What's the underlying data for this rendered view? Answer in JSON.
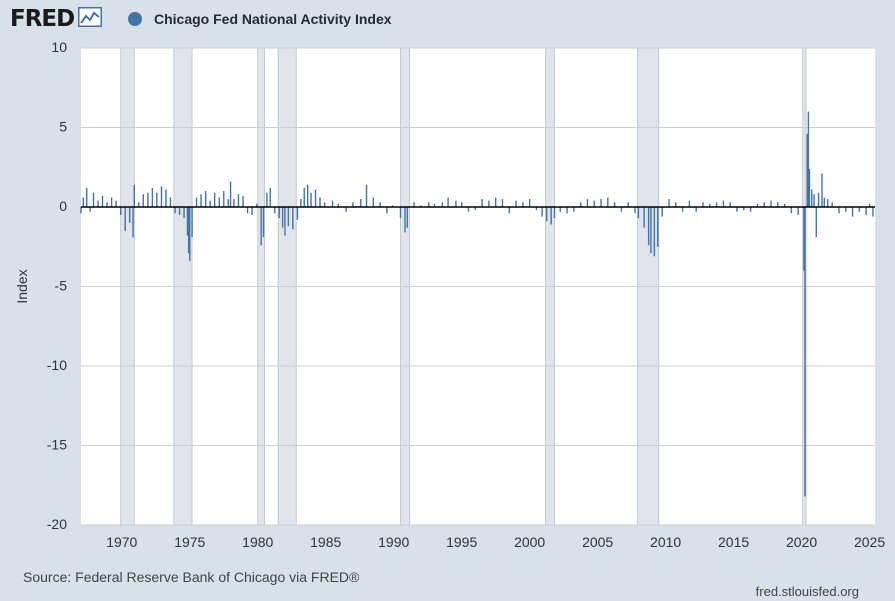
{
  "header": {
    "brand": "FRED",
    "brand_icon": "line-graph-icon",
    "legend_label": "Chicago Fed National Activity Index"
  },
  "footer": {
    "source": "Source: Federal Reserve Bank of Chicago via FRED®",
    "site": "fred.stlouisfed.org"
  },
  "colors": {
    "background": "#d8e0e9",
    "plot_background": "#ffffff",
    "series": "#4572a7",
    "recession": "#e1e5eb",
    "gridline": "#c9cfd6",
    "zero_line": "#000000"
  },
  "chart_data": {
    "type": "bar",
    "title": "Chicago Fed National Activity Index",
    "ylabel": "Index",
    "xlabel": "",
    "xlim": [
      1967.0,
      2025.4
    ],
    "ylim": [
      -20,
      10
    ],
    "yticks": [
      10,
      5,
      0,
      -5,
      -10,
      -15,
      -20
    ],
    "xticks": [
      1970,
      1975,
      1980,
      1985,
      1990,
      1995,
      2000,
      2005,
      2010,
      2015,
      2020,
      2025
    ],
    "grid": true,
    "frequency": "monthly",
    "recessions": [
      [
        1969.92,
        1970.92
      ],
      [
        1973.83,
        1975.17
      ],
      [
        1980.0,
        1980.5
      ],
      [
        1981.5,
        1982.83
      ],
      [
        1990.5,
        1991.17
      ],
      [
        2001.17,
        2001.83
      ],
      [
        2007.92,
        2009.5
      ],
      [
        2020.08,
        2020.33
      ]
    ],
    "series": [
      {
        "name": "Chicago Fed National Activity Index",
        "values": [
          [
            1967.0,
            -0.4
          ],
          [
            1967.17,
            0.6
          ],
          [
            1967.42,
            1.2
          ],
          [
            1967.67,
            -0.3
          ],
          [
            1967.92,
            0.9
          ],
          [
            1968.25,
            0.4
          ],
          [
            1968.58,
            0.7
          ],
          [
            1968.92,
            0.3
          ],
          [
            1969.25,
            0.6
          ],
          [
            1969.58,
            0.4
          ],
          [
            1969.92,
            -0.5
          ],
          [
            1970.25,
            -1.5
          ],
          [
            1970.58,
            -1.0
          ],
          [
            1970.83,
            -1.9
          ],
          [
            1970.92,
            1.4
          ],
          [
            1971.25,
            0.3
          ],
          [
            1971.58,
            0.8
          ],
          [
            1971.92,
            0.9
          ],
          [
            1972.25,
            1.2
          ],
          [
            1972.58,
            0.9
          ],
          [
            1972.92,
            1.3
          ],
          [
            1973.25,
            1.1
          ],
          [
            1973.58,
            0.6
          ],
          [
            1973.92,
            -0.4
          ],
          [
            1974.25,
            -0.5
          ],
          [
            1974.58,
            -0.7
          ],
          [
            1974.83,
            -1.8
          ],
          [
            1974.92,
            -2.9
          ],
          [
            1975.0,
            -3.4
          ],
          [
            1975.17,
            -1.9
          ],
          [
            1975.5,
            0.6
          ],
          [
            1975.83,
            0.8
          ],
          [
            1976.17,
            1.0
          ],
          [
            1976.5,
            0.4
          ],
          [
            1976.83,
            0.9
          ],
          [
            1977.17,
            0.6
          ],
          [
            1977.5,
            1.0
          ],
          [
            1977.83,
            0.5
          ],
          [
            1978.0,
            1.6
          ],
          [
            1978.25,
            0.5
          ],
          [
            1978.58,
            0.8
          ],
          [
            1978.92,
            0.7
          ],
          [
            1979.25,
            -0.4
          ],
          [
            1979.58,
            -0.5
          ],
          [
            1979.92,
            0.2
          ],
          [
            1980.25,
            -2.4
          ],
          [
            1980.42,
            -1.9
          ],
          [
            1980.67,
            0.9
          ],
          [
            1980.92,
            1.2
          ],
          [
            1981.25,
            -0.4
          ],
          [
            1981.58,
            -0.7
          ],
          [
            1981.83,
            -1.3
          ],
          [
            1982.0,
            -1.8
          ],
          [
            1982.25,
            -1.2
          ],
          [
            1982.58,
            -1.4
          ],
          [
            1982.92,
            -0.8
          ],
          [
            1983.17,
            0.5
          ],
          [
            1983.42,
            1.2
          ],
          [
            1983.67,
            1.4
          ],
          [
            1983.92,
            0.9
          ],
          [
            1984.25,
            1.1
          ],
          [
            1984.58,
            0.6
          ],
          [
            1984.92,
            0.3
          ],
          [
            1985.5,
            0.4
          ],
          [
            1985.92,
            0.2
          ],
          [
            1986.5,
            -0.3
          ],
          [
            1987.0,
            0.3
          ],
          [
            1987.58,
            0.5
          ],
          [
            1988.0,
            1.4
          ],
          [
            1988.5,
            0.6
          ],
          [
            1989.0,
            0.3
          ],
          [
            1989.5,
            -0.4
          ],
          [
            1989.92,
            0.1
          ],
          [
            1990.5,
            -0.7
          ],
          [
            1990.83,
            -1.6
          ],
          [
            1991.0,
            -1.3
          ],
          [
            1991.5,
            0.3
          ],
          [
            1992.0,
            0.1
          ],
          [
            1992.58,
            0.3
          ],
          [
            1993.0,
            0.2
          ],
          [
            1993.58,
            0.3
          ],
          [
            1994.0,
            0.6
          ],
          [
            1994.58,
            0.4
          ],
          [
            1995.0,
            0.3
          ],
          [
            1995.5,
            -0.3
          ],
          [
            1996.0,
            -0.2
          ],
          [
            1996.5,
            0.5
          ],
          [
            1997.0,
            0.4
          ],
          [
            1997.5,
            0.6
          ],
          [
            1998.0,
            0.5
          ],
          [
            1998.5,
            -0.4
          ],
          [
            1999.0,
            0.4
          ],
          [
            1999.5,
            0.3
          ],
          [
            2000.0,
            0.5
          ],
          [
            2000.5,
            -0.2
          ],
          [
            2000.92,
            -0.6
          ],
          [
            2001.25,
            -0.9
          ],
          [
            2001.58,
            -1.1
          ],
          [
            2001.83,
            -0.7
          ],
          [
            2002.25,
            -0.3
          ],
          [
            2002.75,
            -0.4
          ],
          [
            2003.25,
            -0.3
          ],
          [
            2003.75,
            0.3
          ],
          [
            2004.25,
            0.5
          ],
          [
            2004.75,
            0.4
          ],
          [
            2005.25,
            0.5
          ],
          [
            2005.75,
            0.6
          ],
          [
            2006.25,
            0.3
          ],
          [
            2006.75,
            -0.3
          ],
          [
            2007.25,
            0.3
          ],
          [
            2007.75,
            -0.4
          ],
          [
            2008.0,
            -0.7
          ],
          [
            2008.42,
            -1.3
          ],
          [
            2008.75,
            -2.4
          ],
          [
            2008.92,
            -2.9
          ],
          [
            2009.17,
            -3.1
          ],
          [
            2009.42,
            -2.5
          ],
          [
            2009.75,
            -0.6
          ],
          [
            2010.25,
            0.5
          ],
          [
            2010.75,
            0.3
          ],
          [
            2011.25,
            -0.3
          ],
          [
            2011.75,
            0.4
          ],
          [
            2012.25,
            -0.3
          ],
          [
            2012.75,
            0.3
          ],
          [
            2013.25,
            0.2
          ],
          [
            2013.75,
            0.3
          ],
          [
            2014.25,
            0.4
          ],
          [
            2014.75,
            0.3
          ],
          [
            2015.25,
            -0.3
          ],
          [
            2015.75,
            -0.2
          ],
          [
            2016.25,
            -0.3
          ],
          [
            2016.75,
            0.2
          ],
          [
            2017.25,
            0.3
          ],
          [
            2017.75,
            0.4
          ],
          [
            2018.25,
            0.3
          ],
          [
            2018.75,
            0.2
          ],
          [
            2019.25,
            -0.4
          ],
          [
            2019.75,
            -0.5
          ],
          [
            2020.17,
            -4.0
          ],
          [
            2020.25,
            -18.2
          ],
          [
            2020.42,
            4.6
          ],
          [
            2020.5,
            6.0
          ],
          [
            2020.58,
            2.4
          ],
          [
            2020.75,
            1.1
          ],
          [
            2020.92,
            0.8
          ],
          [
            2021.08,
            -1.9
          ],
          [
            2021.25,
            0.9
          ],
          [
            2021.5,
            2.1
          ],
          [
            2021.67,
            0.6
          ],
          [
            2021.92,
            0.5
          ],
          [
            2022.25,
            0.3
          ],
          [
            2022.75,
            -0.4
          ],
          [
            2023.25,
            -0.3
          ],
          [
            2023.75,
            -0.6
          ],
          [
            2024.25,
            -0.3
          ],
          [
            2024.75,
            -0.5
          ],
          [
            2025.0,
            0.2
          ],
          [
            2025.25,
            -0.6
          ]
        ]
      }
    ]
  }
}
